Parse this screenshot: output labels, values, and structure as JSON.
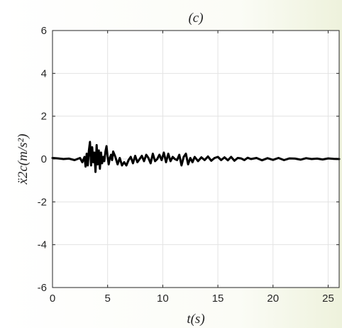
{
  "chart_data": {
    "type": "line",
    "title": "(c)",
    "xlabel": "t(s)",
    "ylabel": "ẍ2c(m/s²)",
    "xlim": [
      0,
      26
    ],
    "ylim": [
      -6,
      6
    ],
    "x_ticks": [
      0,
      5,
      10,
      15,
      20,
      25
    ],
    "y_ticks": [
      -6,
      -4,
      -2,
      0,
      2,
      4,
      6
    ],
    "x_tick_labels": [
      "0",
      "5",
      "10",
      "15",
      "20",
      "25"
    ],
    "y_tick_labels": [
      "-6",
      "-4",
      "-2",
      "0",
      "2",
      "4",
      "6"
    ],
    "grid": true,
    "line_color": "#000000",
    "series": [
      {
        "x": [
          0,
          0.5,
          1.0,
          1.5,
          2.0,
          2.5,
          2.7,
          2.9,
          3.0,
          3.1,
          3.2,
          3.3,
          3.4,
          3.5,
          3.6,
          3.7,
          3.8,
          3.9,
          4.0,
          4.1,
          4.2,
          4.3,
          4.4,
          4.5,
          4.6,
          4.7,
          4.8,
          4.9,
          5.0,
          5.1,
          5.2,
          5.3,
          5.4,
          5.5,
          5.7,
          5.9,
          6.1,
          6.3,
          6.5,
          6.7,
          6.9,
          7.1,
          7.3,
          7.5,
          7.7,
          7.9,
          8.1,
          8.3,
          8.5,
          8.7,
          8.9,
          9.1,
          9.3,
          9.5,
          9.7,
          9.9,
          10.1,
          10.3,
          10.5,
          10.7,
          10.9,
          11.1,
          11.3,
          11.5,
          11.7,
          11.9,
          12.1,
          12.3,
          12.5,
          12.7,
          12.9,
          13.2,
          13.5,
          13.8,
          14.1,
          14.4,
          14.7,
          15.0,
          15.3,
          15.6,
          15.9,
          16.2,
          16.5,
          16.8,
          17.1,
          17.4,
          17.7,
          18.0,
          18.5,
          19.0,
          19.5,
          20.0,
          20.5,
          21.0,
          21.5,
          22.0,
          22.5,
          23.0,
          23.5,
          24.0,
          24.5,
          25.0,
          25.5,
          26.0
        ],
        "values": [
          0.05,
          0.03,
          0.0,
          0.02,
          -0.05,
          0.05,
          -0.15,
          0.1,
          -0.35,
          0.25,
          -0.3,
          0.4,
          0.8,
          -0.3,
          0.55,
          -0.15,
          0.3,
          -0.6,
          0.65,
          -0.25,
          0.4,
          -0.45,
          0.3,
          -0.2,
          0.1,
          -0.1,
          0.35,
          0.6,
          0.1,
          -0.25,
          0.05,
          0.2,
          -0.05,
          0.35,
          0.1,
          -0.25,
          0.05,
          -0.3,
          -0.15,
          -0.3,
          -0.05,
          0.1,
          -0.2,
          0.15,
          -0.15,
          0.0,
          0.15,
          -0.1,
          0.2,
          0.05,
          -0.2,
          0.25,
          -0.1,
          0.0,
          0.2,
          -0.05,
          0.3,
          -0.15,
          0.25,
          -0.1,
          0.1,
          0.0,
          -0.05,
          0.2,
          -0.3,
          0.1,
          0.25,
          -0.25,
          0.05,
          -0.15,
          0.1,
          -0.1,
          0.08,
          -0.05,
          0.12,
          -0.08,
          0.05,
          0.1,
          -0.05,
          0.08,
          -0.06,
          0.1,
          -0.08,
          0.05,
          0.03,
          -0.05,
          0.06,
          0.0,
          0.05,
          -0.06,
          0.04,
          -0.04,
          0.05,
          -0.05,
          0.03,
          0.02,
          -0.03,
          0.04,
          0.0,
          0.02,
          -0.02,
          0.03,
          0.01,
          0.0
        ]
      }
    ]
  }
}
